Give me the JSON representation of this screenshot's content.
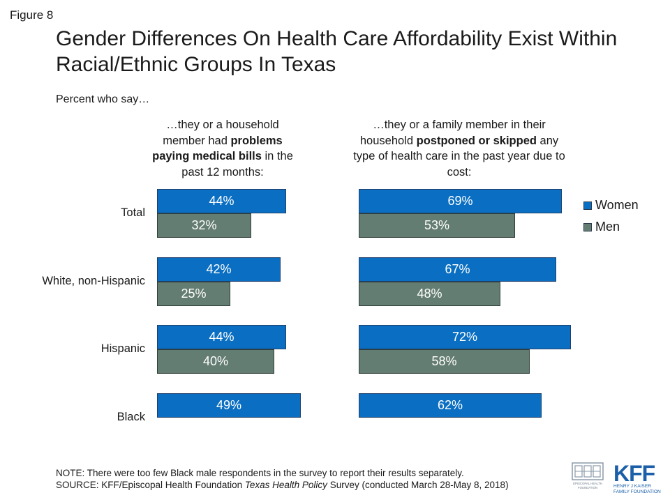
{
  "figure_label": "Figure 8",
  "title": "Gender Differences On Health Care Affordability Exist Within Racial/Ethnic Groups In Texas",
  "subtitle": "Percent who say…",
  "left_header": {
    "pre": "…they or a household member had ",
    "bold": "problems paying medical bills",
    "post": " in the past 12 months:"
  },
  "right_header": {
    "pre": "…they or a family member in their household ",
    "bold": "postponed or skipped",
    "post": " any type of health care in the past year due to cost:"
  },
  "footnote": {
    "note": "NOTE: There were too few Black male respondents in the survey to report their results separately.",
    "source_pre": "SOURCE: KFF/Episcopal Health Foundation ",
    "source_italic": "Texas Health Policy",
    "source_post": " Survey (conducted March 28-May 8, 2018)"
  },
  "logos": {
    "ehf_caption": "EPISCOPAL HEALTH FOUNDATION",
    "kff_mark": "KFF",
    "kff_line1": "HENRY J KAISER",
    "kff_line2": "FAMILY FOUNDATION"
  },
  "colors": {
    "women": "#0a6fc2",
    "men": "#647d72",
    "kff_blue": "#1a5fa8"
  },
  "chart_data": [
    {
      "type": "bar",
      "orientation": "horizontal",
      "categories": [
        "Total",
        "White, non-Hispanic",
        "Hispanic",
        "Black"
      ],
      "series": [
        {
          "name": "Women",
          "values": [
            44,
            42,
            44,
            49
          ],
          "labels": [
            "44%",
            "42%",
            "44%",
            "49%"
          ]
        },
        {
          "name": "Men",
          "values": [
            32,
            25,
            40,
            null
          ],
          "labels": [
            "32%",
            "25%",
            "40%",
            ""
          ]
        }
      ],
      "xlim": [
        0,
        100
      ]
    },
    {
      "type": "bar",
      "orientation": "horizontal",
      "categories": [
        "Total",
        "White, non-Hispanic",
        "Hispanic",
        "Black"
      ],
      "series": [
        {
          "name": "Women",
          "values": [
            69,
            67,
            72,
            62
          ],
          "labels": [
            "69%",
            "67%",
            "72%",
            "62%"
          ]
        },
        {
          "name": "Men",
          "values": [
            53,
            48,
            58,
            null
          ],
          "labels": [
            "53%",
            "48%",
            "58%",
            ""
          ]
        }
      ],
      "xlim": [
        0,
        100
      ]
    }
  ],
  "legend": [
    {
      "name": "Women",
      "label": "Women"
    },
    {
      "name": "Men",
      "label": "Men"
    }
  ]
}
